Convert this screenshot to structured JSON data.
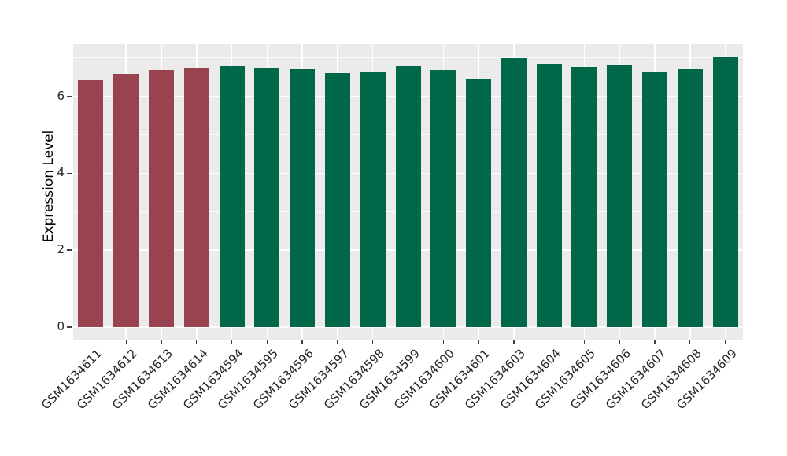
{
  "chart_data": {
    "type": "bar",
    "title": "",
    "xlabel": "",
    "ylabel": "Expression Level",
    "y_ticks": [
      0,
      2,
      4,
      6
    ],
    "y_minor_ticks": [
      1,
      3,
      5,
      7
    ],
    "ylim": [
      -0.33,
      7.36
    ],
    "grid": "white major and minor gridlines on gray panel (ggplot style), vertical gridlines at each category",
    "legend": "none",
    "colors": {
      "red_group": "#9A4350",
      "green_group": "#006849",
      "panel_bg": "#EBEBEB",
      "gridline": "#FFFFFF",
      "tick_mark": "#404040",
      "tick_text": "#262626"
    },
    "bars": [
      {
        "label": "GSM1634611",
        "value": 6.41,
        "group": "red_group"
      },
      {
        "label": "GSM1634612",
        "value": 6.59,
        "group": "red_group"
      },
      {
        "label": "GSM1634613",
        "value": 6.69,
        "group": "red_group"
      },
      {
        "label": "GSM1634614",
        "value": 6.75,
        "group": "red_group"
      },
      {
        "label": "GSM1634594",
        "value": 6.79,
        "group": "green_group"
      },
      {
        "label": "GSM1634595",
        "value": 6.72,
        "group": "green_group"
      },
      {
        "label": "GSM1634596",
        "value": 6.7,
        "group": "green_group"
      },
      {
        "label": "GSM1634597",
        "value": 6.61,
        "group": "green_group"
      },
      {
        "label": "GSM1634598",
        "value": 6.65,
        "group": "green_group"
      },
      {
        "label": "GSM1634599",
        "value": 6.79,
        "group": "green_group"
      },
      {
        "label": "GSM1634600",
        "value": 6.69,
        "group": "green_group"
      },
      {
        "label": "GSM1634601",
        "value": 6.46,
        "group": "green_group"
      },
      {
        "label": "GSM1634603",
        "value": 7.0,
        "group": "green_group"
      },
      {
        "label": "GSM1634604",
        "value": 6.84,
        "group": "green_group"
      },
      {
        "label": "GSM1634605",
        "value": 6.76,
        "group": "green_group"
      },
      {
        "label": "GSM1634606",
        "value": 6.8,
        "group": "green_group"
      },
      {
        "label": "GSM1634607",
        "value": 6.62,
        "group": "green_group"
      },
      {
        "label": "GSM1634608",
        "value": 6.7,
        "group": "green_group"
      },
      {
        "label": "GSM1634609",
        "value": 7.01,
        "group": "green_group"
      }
    ]
  }
}
